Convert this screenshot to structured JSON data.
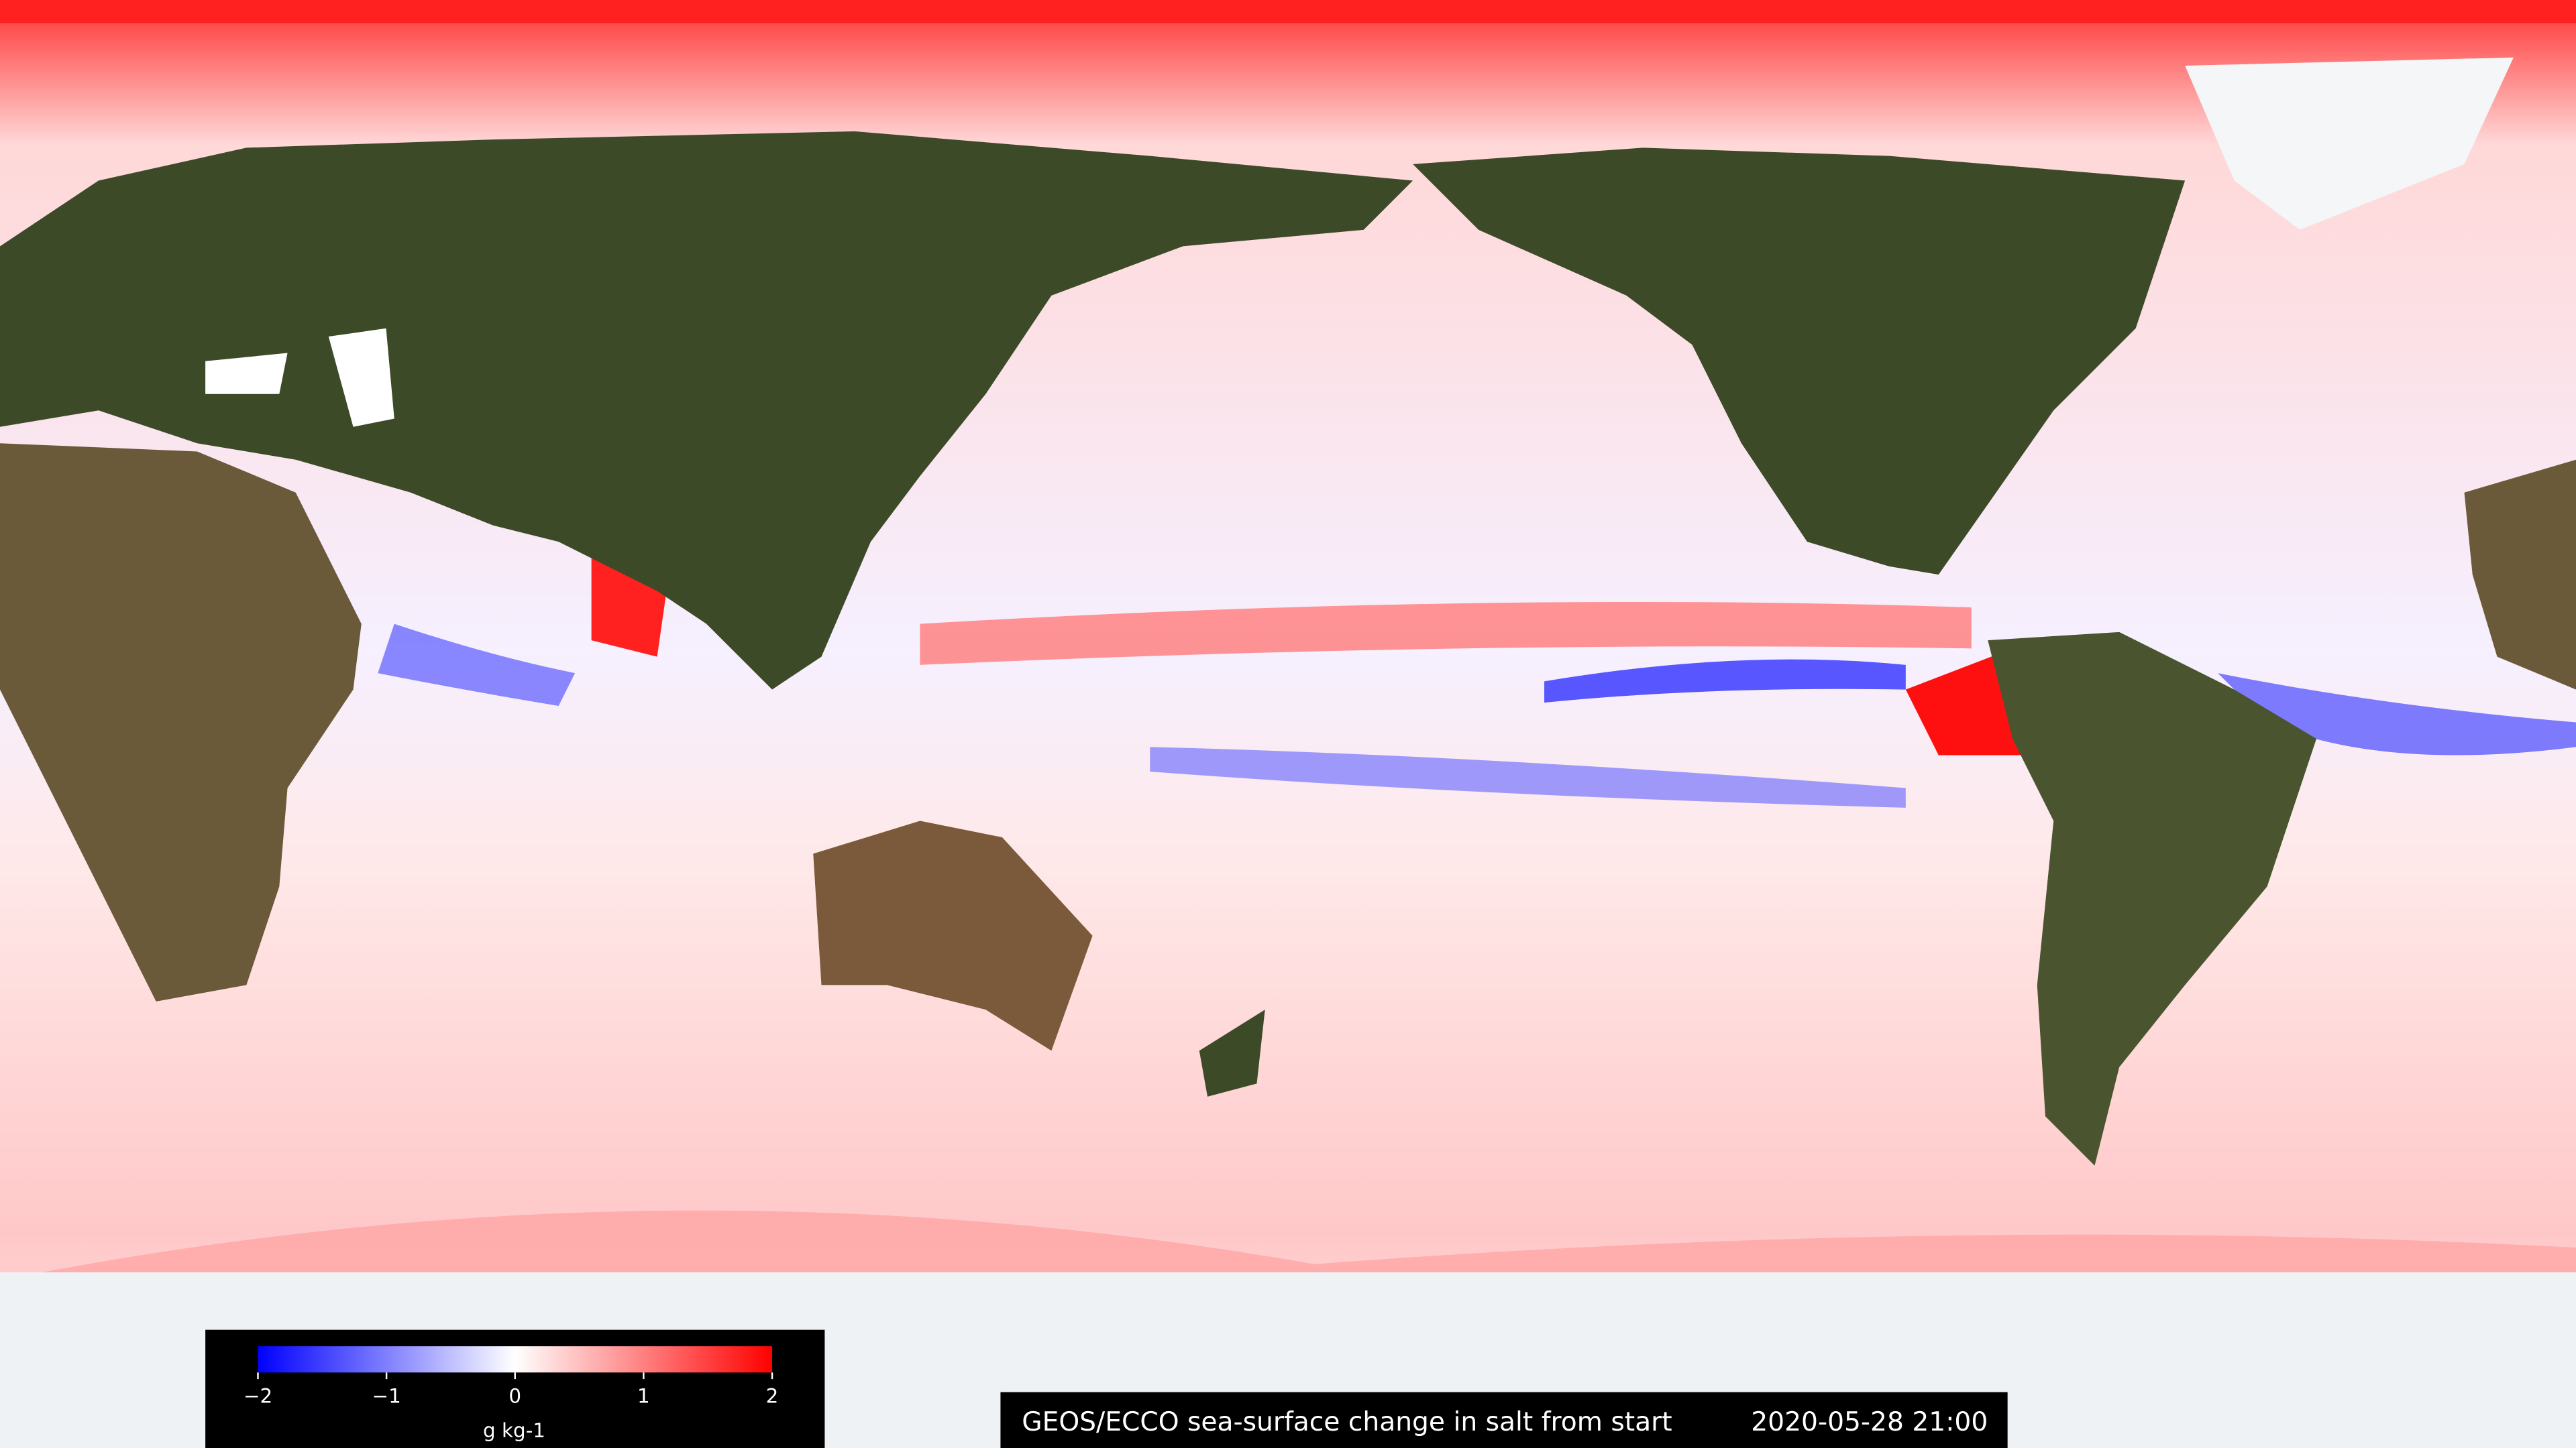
{
  "colorbar": {
    "lim": [
      -2,
      2
    ],
    "ticks": [
      {
        "value": -2,
        "label": "−2"
      },
      {
        "value": -1,
        "label": "−1"
      },
      0,
      1,
      2
    ],
    "label": "g kg-1",
    "colors": [
      "#0000ff",
      "#ffffff",
      "#ff0000"
    ]
  },
  "caption": {
    "title": "GEOS/ECCO sea-surface change in salt from start",
    "timestamp": "2020-05-28 21:00"
  }
}
